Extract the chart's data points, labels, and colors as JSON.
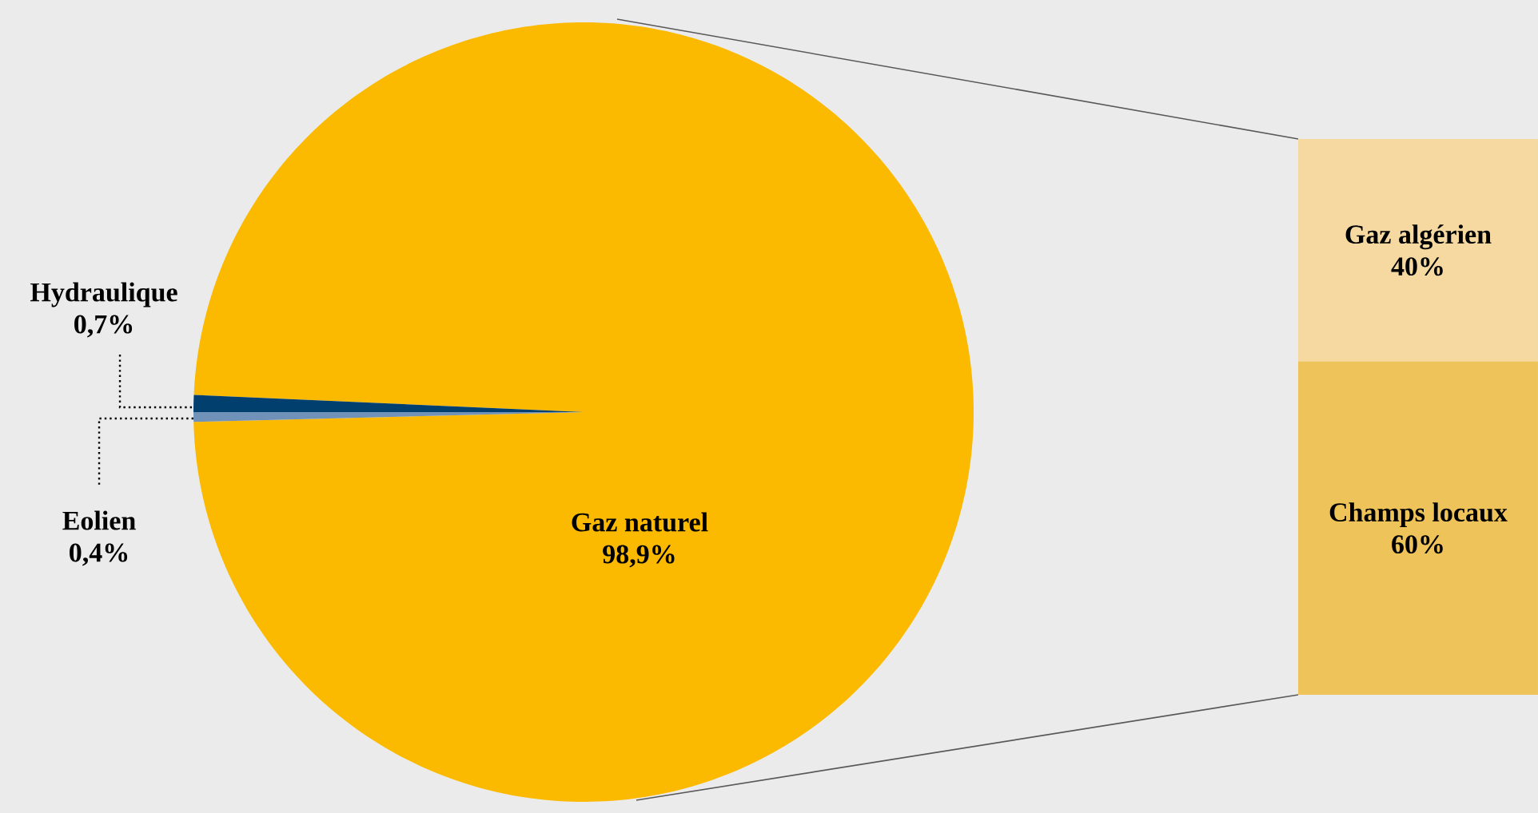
{
  "chart_data": [
    {
      "type": "pie",
      "categories": [
        "Gaz naturel",
        "Hydraulique",
        "Eolien"
      ],
      "values": [
        98.9,
        0.7,
        0.4
      ],
      "colors": [
        "#fbb900",
        "#003f6e",
        "#7092b8"
      ],
      "value_labels": [
        "98,9%",
        "0,7%",
        "0,4%"
      ]
    },
    {
      "type": "bar",
      "stacked": true,
      "categories": [
        null
      ],
      "tick_labels": false,
      "series": [
        {
          "name": "Champs locaux",
          "color": "#eec35a",
          "values": [
            60
          ],
          "value_labels": [
            "60%"
          ]
        },
        {
          "name": "Gaz algérien",
          "color": "#f5d9a0",
          "values": [
            40
          ],
          "value_labels": [
            "40%"
          ]
        }
      ]
    }
  ]
}
